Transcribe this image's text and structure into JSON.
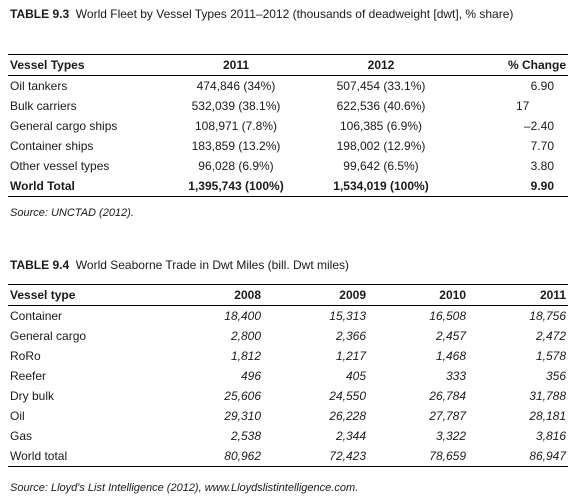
{
  "table93": {
    "label": "TABLE 9.3",
    "title": "World Fleet by Vessel Types 2011–2012 (thousands of deadweight [dwt], % share)",
    "headers": [
      "Vessel Types",
      "2011",
      "2012",
      "% Change"
    ],
    "rows": [
      [
        "Oil tankers",
        "474,846 (34%)",
        "507,454 (33.1%)",
        "6.90"
      ],
      [
        "Bulk carriers",
        "532,039 (38.1%)",
        "622,536 (40.6%)",
        "17"
      ],
      [
        "General cargo ships",
        "108,971 (7.8%)",
        "106,385 (6.9%)",
        "–2.40"
      ],
      [
        "Container ships",
        "183,859 (13.2%)",
        "198,002 (12.9%)",
        "7.70"
      ],
      [
        "Other vessel types",
        "96,028 (6.9%)",
        "99,642 (6.5%)",
        "3.80"
      ],
      [
        "World Total",
        "1,395,743 (100%)",
        "1,534,019 (100%)",
        "9.90"
      ]
    ],
    "source": "Source: UNCTAD (2012)."
  },
  "table94": {
    "label": "TABLE 9.4",
    "title": "World Seaborne Trade in Dwt Miles (bill. Dwt miles)",
    "headers": [
      "Vessel type",
      "2008",
      "2009",
      "2010",
      "2011"
    ],
    "rows": [
      [
        "Container",
        "18,400",
        "15,313",
        "16,508",
        "18,756"
      ],
      [
        "General cargo",
        "2,800",
        "2,366",
        "2,457",
        "2,472"
      ],
      [
        "RoRo",
        "1,812",
        "1,217",
        "1,468",
        "1,578"
      ],
      [
        "Reefer",
        "496",
        "405",
        "333",
        "356"
      ],
      [
        "Dry bulk",
        "25,606",
        "24,550",
        "26,784",
        "31,788"
      ],
      [
        "Oil",
        "29,310",
        "26,228",
        "27,787",
        "28,181"
      ],
      [
        "Gas",
        "2,538",
        "2,344",
        "3,322",
        "3,816"
      ],
      [
        "World total",
        "80,962",
        "72,423",
        "78,659",
        "86,947"
      ]
    ],
    "source": "Source: Lloyd's List Intelligence (2012), www.Lloydslistintelligence.com."
  }
}
